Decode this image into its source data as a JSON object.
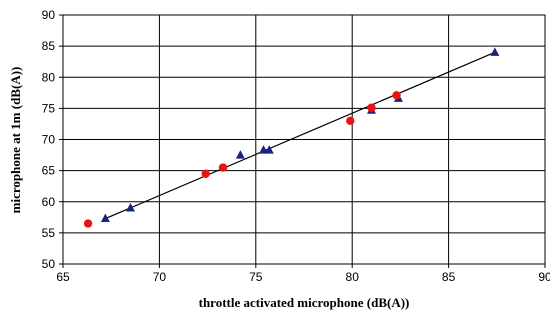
{
  "chart_data": {
    "type": "scatter",
    "xlabel": "throttle activated microphone  (dB(A))",
    "ylabel": "microphone at 1m (dB(A))",
    "xlim": [
      65,
      90
    ],
    "ylim": [
      50,
      90
    ],
    "x_ticks": [
      65,
      70,
      75,
      80,
      85,
      90
    ],
    "y_ticks": [
      50,
      55,
      60,
      65,
      70,
      75,
      80,
      85,
      90
    ],
    "grid": true,
    "series": [
      {
        "marker": "triangle",
        "color": "#1a237e",
        "points": [
          {
            "x": 67.2,
            "y": 57.3
          },
          {
            "x": 68.5,
            "y": 59.0
          },
          {
            "x": 74.2,
            "y": 67.5
          },
          {
            "x": 75.4,
            "y": 68.3
          },
          {
            "x": 75.7,
            "y": 68.3
          },
          {
            "x": 81.0,
            "y": 74.7
          },
          {
            "x": 82.4,
            "y": 76.6
          },
          {
            "x": 87.4,
            "y": 84.0
          }
        ]
      },
      {
        "marker": "circle",
        "color": "#ee1111",
        "points": [
          {
            "x": 66.3,
            "y": 56.5
          },
          {
            "x": 72.4,
            "y": 64.5
          },
          {
            "x": 73.3,
            "y": 65.5
          },
          {
            "x": 79.9,
            "y": 73.0
          },
          {
            "x": 81.0,
            "y": 75.1
          },
          {
            "x": 82.3,
            "y": 77.1
          }
        ]
      }
    ],
    "trendline": {
      "color": "#000000",
      "points": [
        {
          "x": 67.2,
          "y": 57.3
        },
        {
          "x": 87.4,
          "y": 84.0
        }
      ]
    }
  }
}
